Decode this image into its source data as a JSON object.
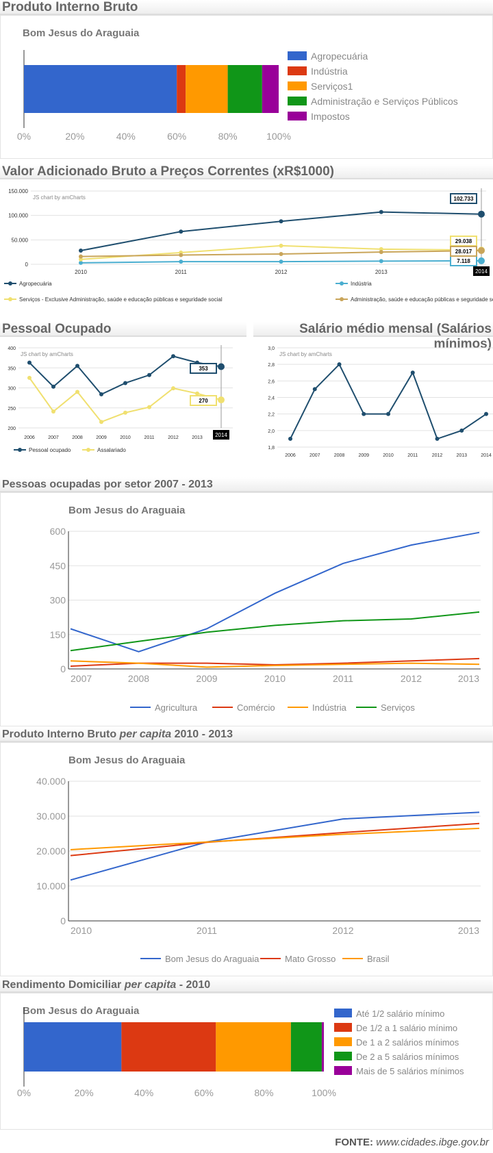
{
  "sections": {
    "pib": "Produto Interno Bruto",
    "vab": "Valor Adicionado Bruto a Preços Correntes (xR$1000)",
    "pessoal": "Pessoal Ocupado",
    "salario": "Salário médio mensal (Salários mínimos)",
    "setor": "Pessoas ocupadas por setor 2007 - 2013",
    "percapita_a": "Produto Interno Bruto ",
    "percapita_i": "per capita",
    "percapita_b": " 2010 - 2013",
    "rend_a": "Rendimento Domiciliar ",
    "rend_i": "per capita",
    "rend_b": " - 2010"
  },
  "footer": {
    "label": "FONTE: ",
    "url": "www.cidades.ibge.gov.br"
  },
  "chart_data": [
    {
      "id": "pib",
      "type": "bar",
      "stacked": true,
      "orientation": "horizontal",
      "title": "Bom Jesus do Araguaia",
      "xticks": [
        "0%",
        "20%",
        "40%",
        "60%",
        "80%",
        "100%"
      ],
      "xlim": [
        0,
        100
      ],
      "series": [
        {
          "name": "Agropecuária",
          "value": 60,
          "color": "#3366cc"
        },
        {
          "name": "Indústria",
          "value": 3.5,
          "color": "#dc3912"
        },
        {
          "name": "Serviços1",
          "value": 16.5,
          "color": "#ff9900"
        },
        {
          "name": "Administração e Serviços Públicos",
          "value": 13.5,
          "color": "#109618"
        },
        {
          "name": "Impostos",
          "value": 6.5,
          "color": "#990099"
        }
      ]
    },
    {
      "id": "vab",
      "type": "line",
      "watermark": "JS chart by amCharts",
      "x": [
        "2010",
        "2011",
        "2012",
        "2013",
        "2014"
      ],
      "ylim": [
        0,
        150000
      ],
      "yticks": [
        "0",
        "50.000",
        "100.000",
        "150.000"
      ],
      "cursor_label": "2014",
      "series": [
        {
          "name": "Agropecuária",
          "values": [
            28000,
            67000,
            88000,
            107000,
            102733
          ],
          "color": "#1f4e6e",
          "label": "102.733"
        },
        {
          "name": "Indústria",
          "values": [
            3000,
            5500,
            5500,
            6500,
            7118
          ],
          "color": "#4aaed0",
          "label": "7.118"
        },
        {
          "name": "Serviços - Exclusive Administração, saúde e educação públicas e seguridade social",
          "values": [
            10000,
            24000,
            38000,
            31000,
            29038
          ],
          "color": "#f0e070",
          "label": "29.038"
        },
        {
          "name": "Administração, saúde e educação públicas e seguridade social",
          "values": [
            16000,
            19000,
            21000,
            25000,
            28017
          ],
          "color": "#c9a55a",
          "label": "28.017"
        }
      ]
    },
    {
      "id": "pessoal",
      "type": "line",
      "watermark": "JS chart by amCharts",
      "x": [
        "2006",
        "2007",
        "2008",
        "2009",
        "2010",
        "2011",
        "2012",
        "2013",
        "2014"
      ],
      "ylim": [
        200,
        400
      ],
      "yticks": [
        "200",
        "250",
        "300",
        "350",
        "400"
      ],
      "cursor_label": "2014",
      "series": [
        {
          "name": "Pessoal ocupado",
          "values": [
            363,
            303,
            355,
            284,
            312,
            332,
            379,
            363,
            353
          ],
          "color": "#1f4e6e",
          "label": "353"
        },
        {
          "name": "Assalariado",
          "values": [
            325,
            241,
            290,
            215,
            238,
            252,
            299,
            286,
            270
          ],
          "color": "#f0e070",
          "label": "270"
        }
      ]
    },
    {
      "id": "salario",
      "type": "line",
      "watermark": "JS chart by amCharts",
      "x": [
        "2006",
        "2007",
        "2008",
        "2009",
        "2010",
        "2011",
        "2012",
        "2013",
        "2014"
      ],
      "ylim": [
        1.8,
        3.0
      ],
      "yticks": [
        "1,8",
        "2,0",
        "2,2",
        "2,4",
        "2,6",
        "2,8",
        "3,0"
      ],
      "series": [
        {
          "values": [
            1.9,
            2.5,
            2.8,
            2.2,
            2.2,
            2.7,
            1.9,
            2.0,
            2.2
          ],
          "color": "#1f4e6e"
        }
      ]
    },
    {
      "id": "setor",
      "type": "line",
      "title": "Bom Jesus do Araguaia",
      "x": [
        "2007",
        "2008",
        "2009",
        "2010",
        "2011",
        "2012",
        "2013"
      ],
      "ylim": [
        0,
        600
      ],
      "yticks": [
        "0",
        "150",
        "300",
        "450",
        "600"
      ],
      "series": [
        {
          "name": "Agricultura",
          "values": [
            175,
            75,
            175,
            330,
            460,
            540,
            595
          ],
          "color": "#3366cc"
        },
        {
          "name": "Comércio",
          "values": [
            12,
            25,
            25,
            18,
            25,
            35,
            45
          ],
          "color": "#dc3912"
        },
        {
          "name": "Indústria",
          "values": [
            35,
            25,
            8,
            15,
            20,
            25,
            20
          ],
          "color": "#ff9900"
        },
        {
          "name": "Serviços",
          "values": [
            80,
            120,
            160,
            190,
            210,
            218,
            248
          ],
          "color": "#109618"
        }
      ]
    },
    {
      "id": "percapita",
      "type": "line",
      "title": "Bom Jesus do Araguaia",
      "x": [
        "2010",
        "2011",
        "2012",
        "2013"
      ],
      "ylim": [
        0,
        40000
      ],
      "yticks": [
        "0",
        "10.000",
        "20.000",
        "30.000",
        "40.000"
      ],
      "series": [
        {
          "name": "Bom Jesus do Araguaia",
          "values": [
            11700,
            22600,
            29200,
            31100
          ],
          "color": "#3366cc"
        },
        {
          "name": "Mato Grosso",
          "values": [
            18700,
            22500,
            25300,
            27900
          ],
          "color": "#dc3912"
        },
        {
          "name": "Brasil",
          "values": [
            20400,
            22600,
            24800,
            26500
          ],
          "color": "#ff9900"
        }
      ]
    },
    {
      "id": "rend",
      "type": "bar",
      "stacked": true,
      "orientation": "horizontal",
      "title": "Bom Jesus do Araguaia",
      "xticks": [
        "0%",
        "20%",
        "40%",
        "60%",
        "80%",
        "100%"
      ],
      "xlim": [
        0,
        100
      ],
      "series": [
        {
          "name": "Até 1/2 salário mínimo",
          "value": 32.5,
          "color": "#3366cc"
        },
        {
          "name": "De 1/2 a 1 salário mínimo",
          "value": 31.5,
          "color": "#dc3912"
        },
        {
          "name": "De 1 a 2 salários mínimos",
          "value": 25,
          "color": "#ff9900"
        },
        {
          "name": "De 2 a 5 salários mínimos",
          "value": 10.3,
          "color": "#109618"
        },
        {
          "name": "Mais de 5 salários mínimos",
          "value": 0.7,
          "color": "#990099"
        }
      ]
    }
  ]
}
